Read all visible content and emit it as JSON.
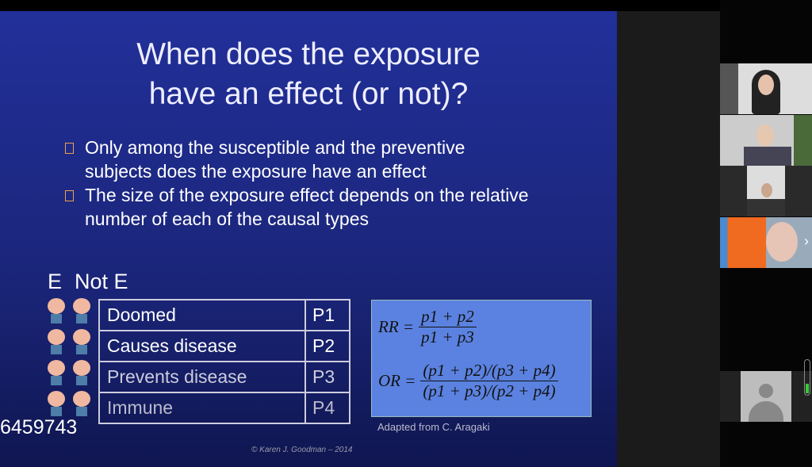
{
  "slide": {
    "title_lines": [
      "When does the exposure",
      "have an effect (or not)?"
    ],
    "bullets": [
      "Only among the susceptible and the preventive subjects does the exposure have an effect",
      "The size of the exposure effect depends on the relative number of each of the causal types"
    ],
    "column_labels": [
      "E",
      "Not E"
    ],
    "table": [
      {
        "type": "Doomed",
        "p": "P1"
      },
      {
        "type": "Causes disease",
        "p": "P2"
      },
      {
        "type": "Prevents disease",
        "p": "P3"
      },
      {
        "type": "Immune",
        "p": "P4"
      }
    ],
    "formula": {
      "rr_lhs": "RR =",
      "rr_num": "p1 + p2",
      "rr_den": "p1 + p3",
      "or_lhs": "OR =",
      "or_num": "(p1 + p2)/(p3 + p4)",
      "or_den": "(p1 + p3)/(p2 + p4)"
    },
    "adapted": "Adapted from C. Aragaki",
    "copyright": "© Karen J. Goodman – 2014"
  },
  "overlay_number": "6459743",
  "colors": {
    "slide_bg": "#1e2b8c",
    "formula_bg": "#5b82e0",
    "bullet": "#f0a050"
  }
}
